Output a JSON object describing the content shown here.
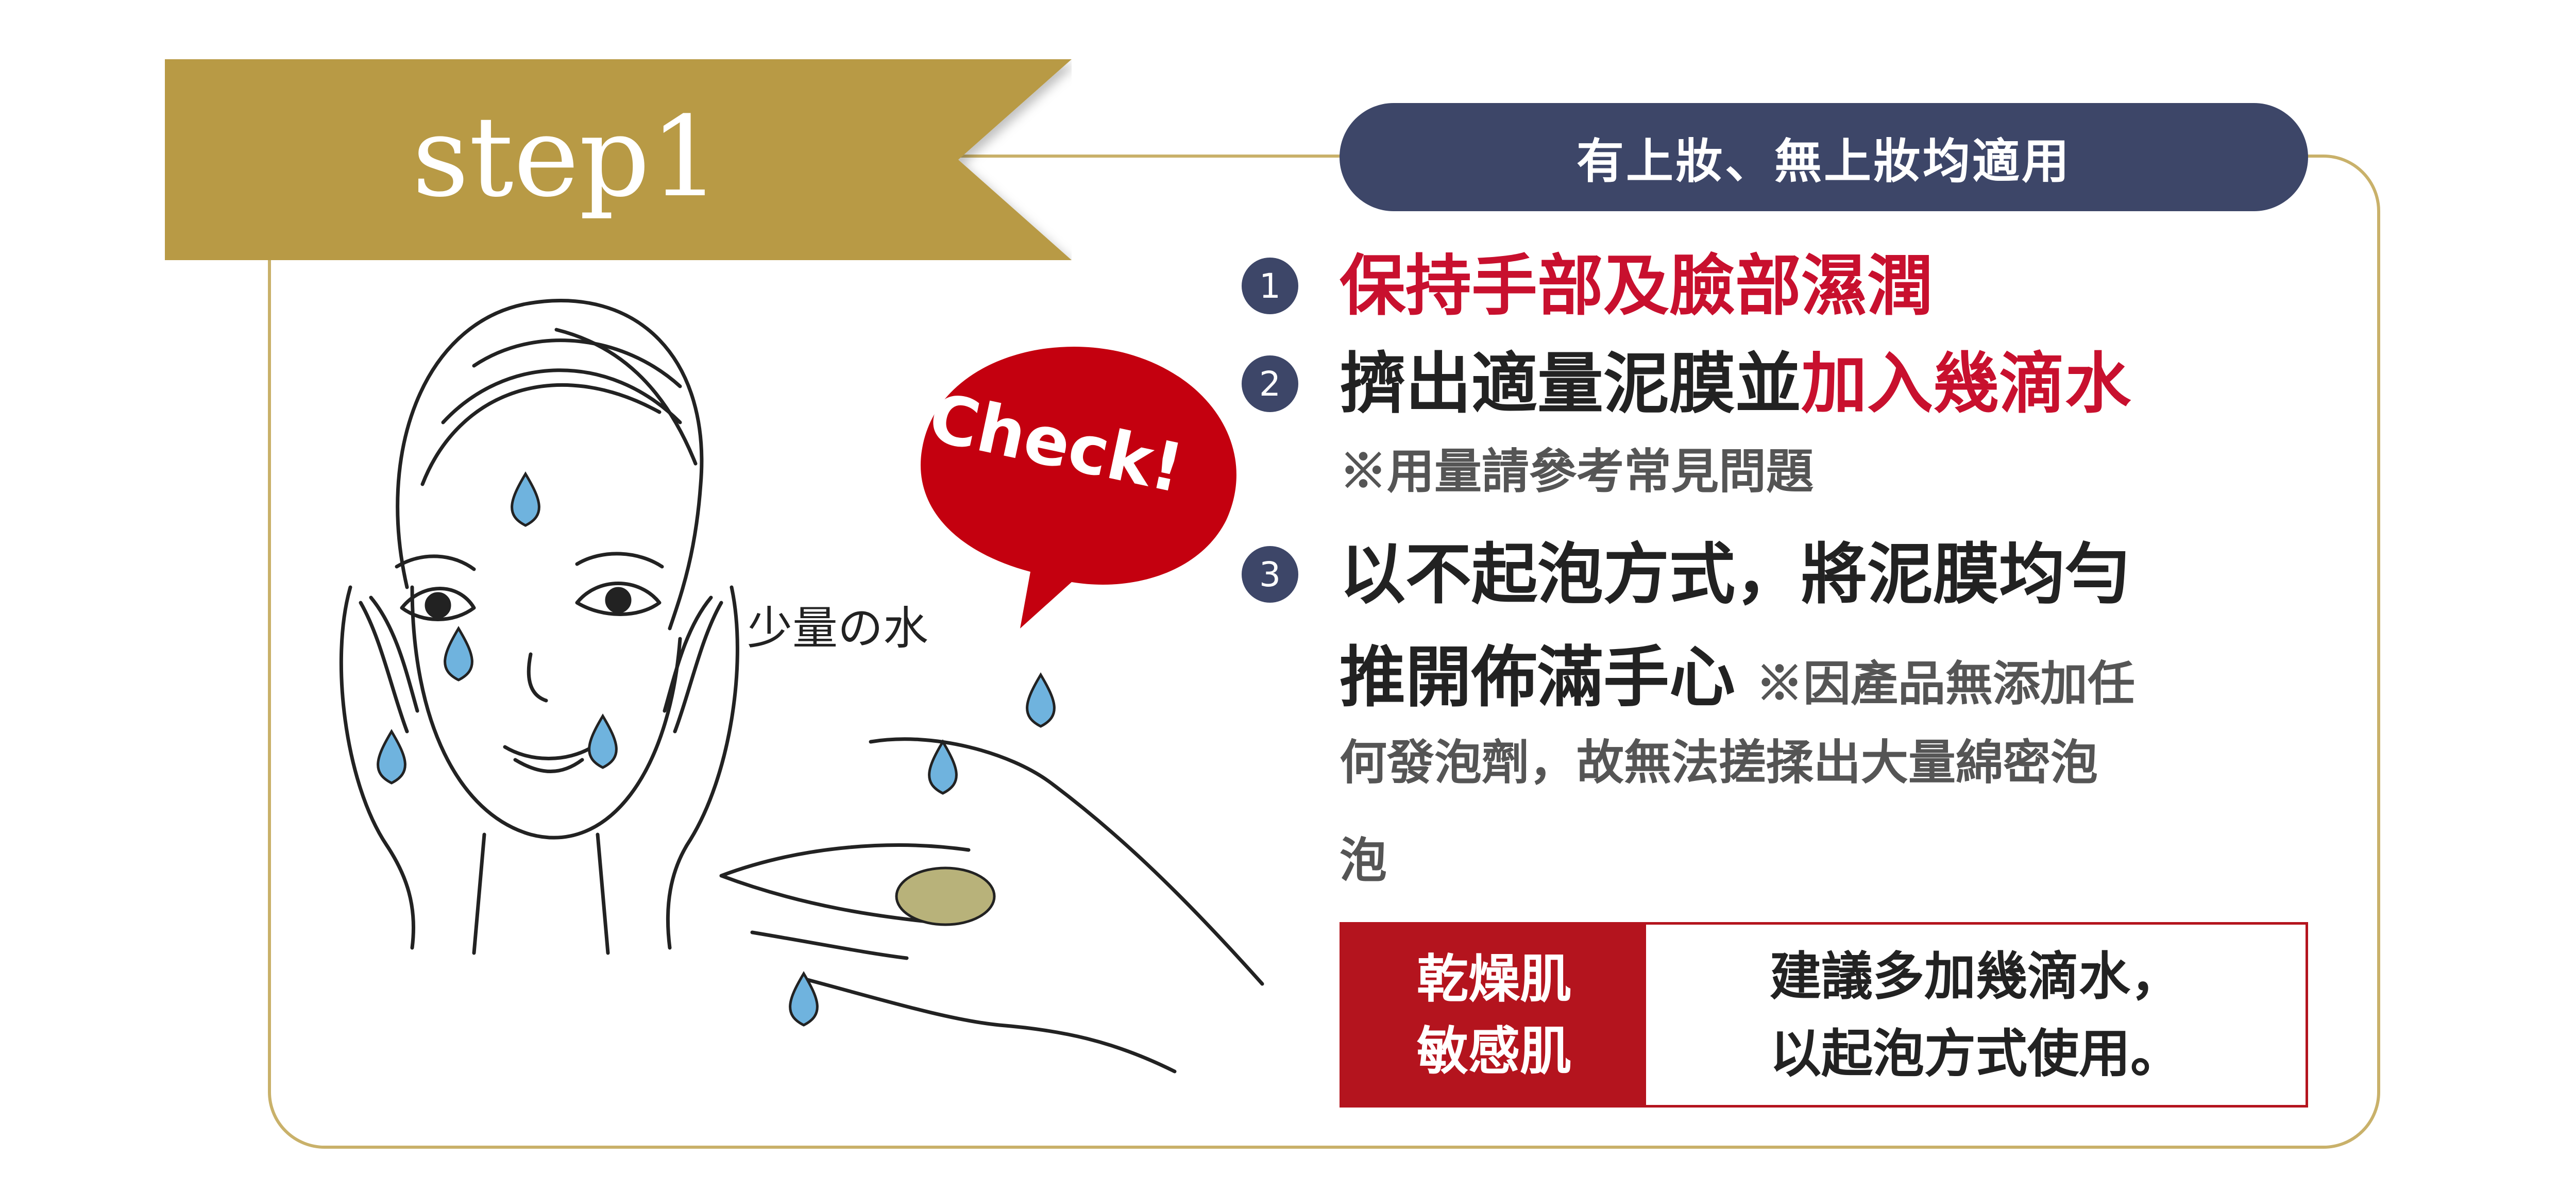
{
  "ribbon": {
    "label": "step1"
  },
  "pill": {
    "label": "有上妝、無上妝均適用"
  },
  "steps": [
    {
      "num": "1",
      "text_red": "保持手部及臉部濕潤"
    },
    {
      "num": "2",
      "text": "擠出適量泥膜並",
      "text_red": "加入幾滴水",
      "note": "※用量請參考常見問題"
    },
    {
      "num": "3",
      "line1": "以不起泡方式，將泥膜均勻",
      "line2": "推開佈滿手心",
      "note_inline": "※因產品無添加任",
      "note_rest1": "何發泡劑，故無法搓揉出大量綿密泡",
      "note_rest2": "泡"
    }
  ],
  "table": {
    "left_line1": "乾燥肌",
    "left_line2": "敏感肌",
    "right_line1": "建議多加幾滴水，",
    "right_line2": "以起泡方式使用。"
  },
  "illustration": {
    "check_label": "Check!",
    "water_label": "少量の水"
  },
  "colors": {
    "gold": "#b89a44",
    "navy": "#3d4668",
    "red": "#c8102e",
    "drop": "#6fb3de",
    "clay": "#b8b27a"
  }
}
